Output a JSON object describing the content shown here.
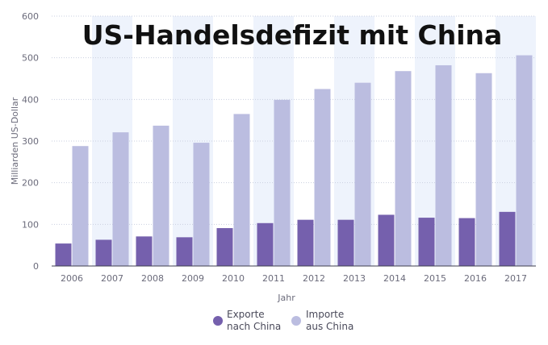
{
  "chart_data": {
    "type": "bar",
    "title": "US-Handelsdefizit mit China",
    "xlabel": "Jahr",
    "ylabel": "Milliarden US-Dollar",
    "ylim": [
      0,
      600
    ],
    "yticks": [
      0,
      100,
      200,
      300,
      400,
      500,
      600
    ],
    "categories": [
      "2006",
      "2007",
      "2008",
      "2009",
      "2010",
      "2011",
      "2012",
      "2013",
      "2014",
      "2015",
      "2016",
      "2017"
    ],
    "series": [
      {
        "name": "Exporte nach China",
        "legend_lines": [
          "Exporte",
          "nach China"
        ],
        "color": "#7560ad",
        "values": [
          54,
          63,
          71,
          69,
          91,
          103,
          111,
          111,
          123,
          116,
          115,
          130
        ]
      },
      {
        "name": "Importe aus China",
        "legend_lines": [
          "Importe",
          "aus China"
        ],
        "color": "#bbbde0",
        "values": [
          288,
          321,
          337,
          296,
          365,
          399,
          425,
          440,
          468,
          482,
          463,
          506
        ]
      }
    ],
    "grid": true,
    "legend_position": "bottom-center",
    "colors": {
      "band": "#eef3fc",
      "grid": "#c9cfdf",
      "axis": "#3f3f4f"
    }
  }
}
